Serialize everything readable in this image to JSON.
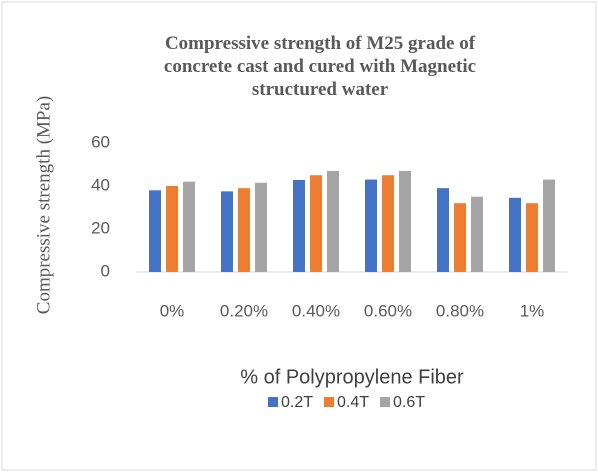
{
  "chart_data": {
    "type": "bar",
    "title": "Compressive strength of M25 grade of concrete cast and cured with Magnetic structured water",
    "x_label": "% of Polypropylene Fiber",
    "y_label": "Compressive strength (MPa)",
    "categories": [
      "0%",
      "0.20%",
      "0.40%",
      "0.60%",
      "0.80%",
      "1%"
    ],
    "series": [
      {
        "name": "0.2T",
        "color": "#4472c4",
        "values": [
          38,
          37.5,
          42.8,
          43,
          39,
          34.5
        ]
      },
      {
        "name": "0.4T",
        "color": "#ed7d31",
        "values": [
          40,
          39,
          45,
          45,
          32,
          32
        ]
      },
      {
        "name": "0.6T",
        "color": "#a5a5a5",
        "values": [
          42,
          41.5,
          47,
          47,
          35,
          43
        ]
      }
    ],
    "ylim": [
      0,
      60
    ],
    "yticks": [
      0,
      20,
      40,
      60
    ],
    "grid": false,
    "legend": "bottom"
  }
}
